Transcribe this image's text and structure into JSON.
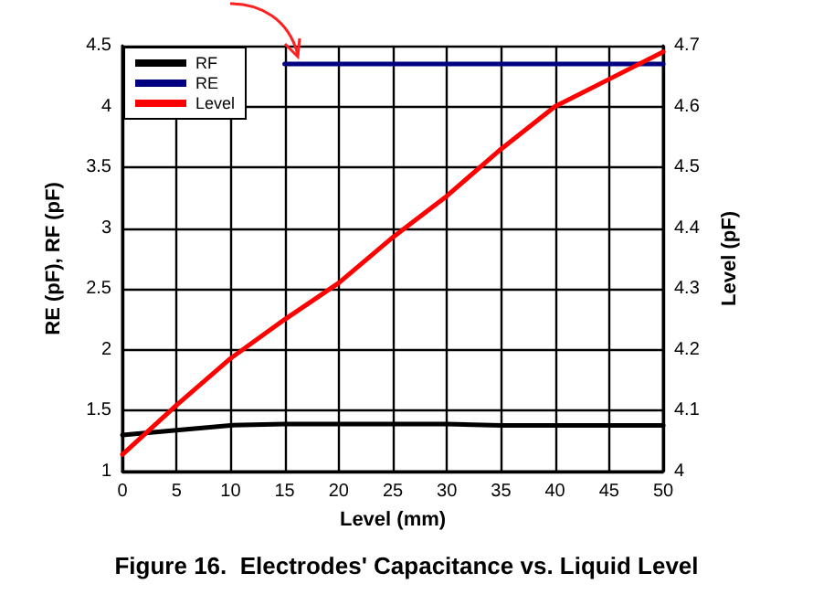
{
  "chart_data": {
    "type": "line",
    "title": "Figure 16.  Electrodes' Capacitance vs. Liquid Level",
    "xlabel": "Level (mm)",
    "ylabel": "RE (pF), RF (pF)",
    "y2label": "Level (pF)",
    "x": [
      0,
      5,
      10,
      15,
      20,
      25,
      30,
      35,
      40,
      45,
      50
    ],
    "series": [
      {
        "name": "RF",
        "color": "#000000",
        "values": [
          1.3,
          1.34,
          1.38,
          1.39,
          1.39,
          1.39,
          1.39,
          1.38,
          1.38,
          1.38,
          1.38
        ]
      },
      {
        "name": "RE",
        "color": "#000080",
        "values": [
          null,
          null,
          null,
          4.35,
          4.35,
          4.35,
          4.35,
          4.35,
          4.35,
          4.35,
          4.35
        ]
      },
      {
        "name": "Level",
        "color": "#ff0000",
        "axis": "y2",
        "values": [
          4.028,
          4.109,
          4.186,
          4.25,
          4.31,
          4.385,
          4.453,
          4.53,
          4.6,
          4.645,
          4.69
        ]
      }
    ],
    "xlim": [
      0,
      50
    ],
    "xticks": [
      0,
      5,
      10,
      15,
      20,
      25,
      30,
      35,
      40,
      45,
      50
    ],
    "ylim": [
      1,
      4.5
    ],
    "yticks": [
      1,
      1.5,
      2,
      2.5,
      3,
      3.5,
      4,
      4.5
    ],
    "y2lim": [
      4,
      4.7
    ],
    "y2ticks": [
      4,
      4.1,
      4.2,
      4.3,
      4.4,
      4.5,
      4.6,
      4.7
    ],
    "grid": true,
    "legend": "top left",
    "marker": "none",
    "line_style": "solid"
  }
}
